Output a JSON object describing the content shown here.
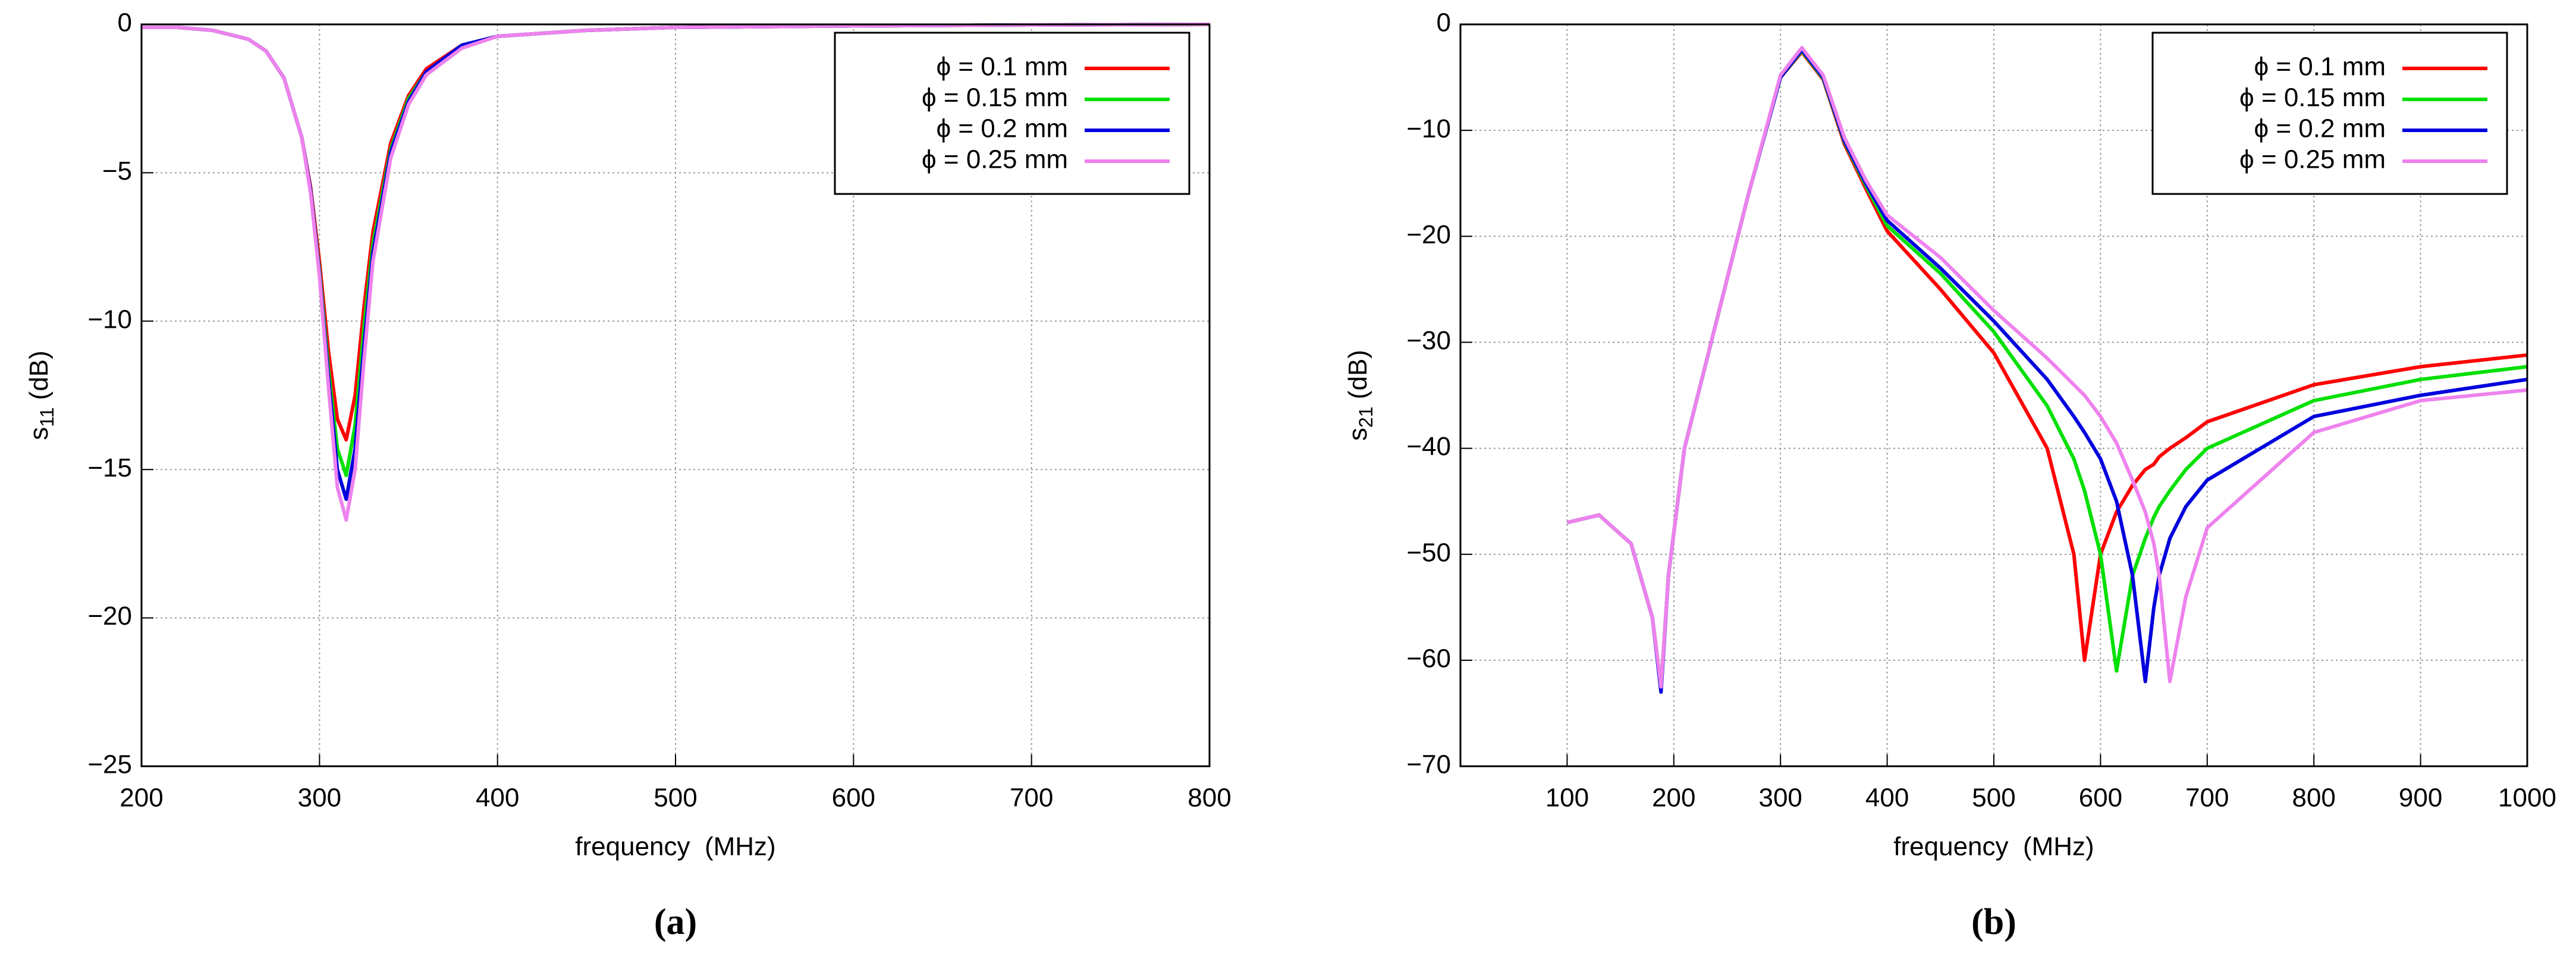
{
  "chart_data": [
    {
      "type": "line",
      "ylabel": {
        "base": "s",
        "sub": "11",
        "unit": " (dB)"
      },
      "xlabel": "frequency  (MHz)",
      "panel_label": "(a)",
      "x": [
        200,
        220,
        240,
        260,
        270,
        280,
        290,
        295,
        300,
        305,
        310,
        315,
        320,
        325,
        330,
        340,
        350,
        360,
        380,
        400,
        450,
        500,
        600,
        700,
        800
      ],
      "series": [
        {
          "name": "ϕ = 0.1 mm",
          "color": "#ff0000",
          "values": [
            -0.1,
            -0.1,
            -0.2,
            -0.5,
            -0.9,
            -1.8,
            -3.8,
            -5.5,
            -8,
            -11,
            -13.3,
            -14,
            -12.5,
            -9.5,
            -7,
            -4,
            -2.4,
            -1.5,
            -0.7,
            -0.4,
            -0.2,
            -0.1,
            -0.05,
            -0.02,
            0
          ]
        },
        {
          "name": "ϕ = 0.15 mm",
          "color": "#00e000",
          "values": [
            -0.1,
            -0.1,
            -0.2,
            -0.5,
            -0.9,
            -1.8,
            -3.8,
            -5.6,
            -8.3,
            -11.6,
            -14.3,
            -15.2,
            -13.5,
            -10.2,
            -7.4,
            -4.2,
            -2.5,
            -1.6,
            -0.7,
            -0.4,
            -0.2,
            -0.1,
            -0.05,
            -0.02,
            0
          ]
        },
        {
          "name": "ϕ = 0.2 mm",
          "color": "#0000dd",
          "values": [
            -0.1,
            -0.1,
            -0.2,
            -0.5,
            -0.9,
            -1.8,
            -3.8,
            -5.6,
            -8.4,
            -11.9,
            -15,
            -16,
            -14.3,
            -10.8,
            -7.7,
            -4.3,
            -2.6,
            -1.6,
            -0.7,
            -0.4,
            -0.2,
            -0.1,
            -0.05,
            -0.02,
            0
          ]
        },
        {
          "name": "ϕ = 0.25 mm",
          "color": "#ee82ee",
          "values": [
            -0.1,
            -0.1,
            -0.2,
            -0.5,
            -0.9,
            -1.8,
            -3.8,
            -5.7,
            -8.5,
            -12.2,
            -15.6,
            -16.7,
            -15,
            -11.3,
            -8,
            -4.5,
            -2.7,
            -1.7,
            -0.8,
            -0.4,
            -0.2,
            -0.1,
            -0.05,
            -0.02,
            0
          ]
        }
      ],
      "xlim": [
        200,
        800
      ],
      "ylim": [
        -25,
        0
      ],
      "xticks": [
        200,
        300,
        400,
        500,
        600,
        700,
        800
      ],
      "yticks": [
        0,
        {
          "value": -5,
          "label": "−5"
        },
        {
          "value": -10,
          "label": "−10"
        },
        {
          "value": -15,
          "label": "−15"
        },
        {
          "value": -20,
          "label": "−20"
        },
        {
          "value": -25,
          "label": "−25"
        }
      ],
      "grid": true,
      "legend": "upper right"
    },
    {
      "type": "line",
      "ylabel": {
        "base": "s",
        "sub": "21",
        "unit": " (dB)"
      },
      "xlabel": "frequency  (MHz)",
      "panel_label": "(b)",
      "x": [
        100,
        130,
        160,
        180,
        188,
        195,
        210,
        240,
        270,
        300,
        320,
        340,
        360,
        380,
        400,
        450,
        500,
        550,
        575,
        585,
        600,
        615,
        630,
        642,
        650,
        655,
        665,
        680,
        700,
        800,
        900,
        1000
      ],
      "series": [
        {
          "name": "ϕ = 0.1 mm",
          "color": "#ff0000",
          "values": [
            -47,
            -46.3,
            -49,
            -56,
            -62.5,
            -52,
            -40,
            -28,
            -16,
            -5,
            -2.6,
            -5.2,
            -11.3,
            -15.5,
            -19.5,
            -25,
            -31,
            -40,
            -50,
            -60,
            -50,
            -46,
            -43.5,
            -42,
            -41.5,
            -40.8,
            -40,
            -39,
            -37.5,
            -34,
            -32.3,
            -31.2
          ]
        },
        {
          "name": "ϕ = 0.15 mm",
          "color": "#00e000",
          "values": [
            -47,
            -46.3,
            -49,
            -56,
            -62.5,
            -52,
            -40,
            -28,
            -16,
            -5,
            -2.5,
            -5.1,
            -11.1,
            -15.2,
            -19,
            -23.5,
            -29,
            -36,
            -41,
            -44,
            -50,
            -61,
            -52,
            -48.5,
            -46.5,
            -45.5,
            -44,
            -42,
            -40,
            -35.5,
            -33.5,
            -32.3
          ]
        },
        {
          "name": "ϕ = 0.2 mm",
          "color": "#0000dd",
          "values": [
            -47,
            -46.3,
            -49,
            -56,
            -63,
            -52,
            -40,
            -28,
            -16,
            -5,
            -2.4,
            -5,
            -11,
            -15,
            -18.5,
            -23,
            -28,
            -33.5,
            -37,
            -38.5,
            -41,
            -45,
            -52,
            -62,
            -55,
            -52,
            -48.5,
            -45.5,
            -43,
            -37,
            -35,
            -33.5
          ]
        },
        {
          "name": "ϕ = 0.25 mm",
          "color": "#ee82ee",
          "values": [
            -47,
            -46.3,
            -49,
            -56,
            -62.5,
            -52,
            -40,
            -28,
            -16,
            -4.8,
            -2.2,
            -4.8,
            -10.7,
            -14.7,
            -18,
            -22,
            -27,
            -31.5,
            -34,
            -35,
            -37,
            -39.5,
            -43,
            -46,
            -49,
            -52,
            -62,
            -54,
            -47.5,
            -38.5,
            -35.5,
            -34.5
          ]
        }
      ],
      "xlim": [
        0,
        1000
      ],
      "ylim": [
        -70,
        0
      ],
      "xticks": [
        100,
        200,
        300,
        400,
        500,
        600,
        700,
        800,
        900,
        1000
      ],
      "yticks": [
        0,
        {
          "value": -10,
          "label": "−10"
        },
        {
          "value": -20,
          "label": "−20"
        },
        {
          "value": -30,
          "label": "−30"
        },
        {
          "value": -40,
          "label": "−40"
        },
        {
          "value": -50,
          "label": "−50"
        },
        {
          "value": -60,
          "label": "−60"
        },
        {
          "value": -70,
          "label": "−70"
        }
      ],
      "grid": true,
      "legend": "upper right"
    }
  ]
}
